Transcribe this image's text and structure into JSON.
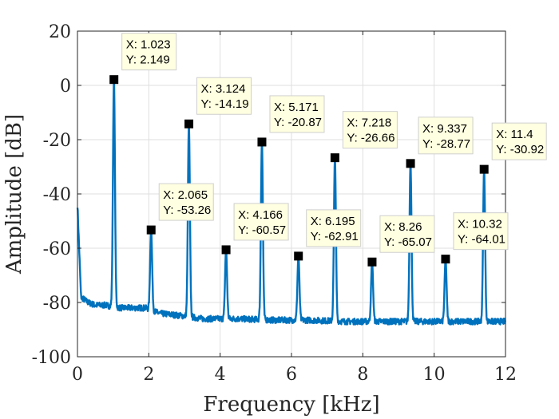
{
  "chart_data": {
    "type": "line",
    "title": "",
    "xlabel": "Frequency [kHz]",
    "ylabel": "Amplitude [dB]",
    "xlim": [
      0,
      12
    ],
    "ylim": [
      -100,
      20
    ],
    "xticks": [
      0,
      2,
      4,
      6,
      8,
      10,
      12
    ],
    "yticks": [
      20,
      0,
      -20,
      -40,
      -60,
      -80,
      -100
    ],
    "grid": true,
    "legend": "none",
    "colors": {
      "line": "#0072BD",
      "marker": "#000000",
      "tip_fill": "#FFFFE1",
      "axes": "#262626",
      "grid": "#DFDFDF"
    },
    "noise_floor": {
      "x": [
        0,
        0.1,
        0.3,
        0.5,
        0.8,
        1.2,
        1.5,
        1.9,
        2.3,
        3.0,
        3.5,
        4.5,
        5.5,
        6.5,
        7.5,
        8.5,
        9.5,
        10.5,
        11.5,
        12.0
      ],
      "y": [
        -44,
        -78,
        -80,
        -81,
        -81,
        -82,
        -82,
        -82,
        -84,
        -85,
        -86,
        -86,
        -86.5,
        -86.5,
        -87,
        -87,
        -87,
        -87,
        -87,
        -87
      ]
    },
    "harmonics": [
      {
        "x": 1.023,
        "y": 2.149
      },
      {
        "x": 2.065,
        "y": -53.26
      },
      {
        "x": 3.124,
        "y": -14.19
      },
      {
        "x": 4.166,
        "y": -60.57
      },
      {
        "x": 5.171,
        "y": -20.87
      },
      {
        "x": 6.195,
        "y": -62.91
      },
      {
        "x": 7.218,
        "y": -26.66
      },
      {
        "x": 8.26,
        "y": -65.07
      },
      {
        "x": 9.337,
        "y": -28.77
      },
      {
        "x": 10.32,
        "y": -64.01
      },
      {
        "x": 11.4,
        "y": -30.92
      }
    ],
    "datatips": [
      {
        "x_text": "X: 1.023",
        "y_text": "Y: 2.149"
      },
      {
        "x_text": "X: 2.065",
        "y_text": "Y: -53.26"
      },
      {
        "x_text": "X: 3.124",
        "y_text": "Y: -14.19"
      },
      {
        "x_text": "X: 4.166",
        "y_text": "Y: -60.57"
      },
      {
        "x_text": "X: 5.171",
        "y_text": "Y: -20.87"
      },
      {
        "x_text": "X: 6.195",
        "y_text": "Y: -62.91"
      },
      {
        "x_text": "X: 7.218",
        "y_text": "Y: -26.66"
      },
      {
        "x_text": "X: 8.26",
        "y_text": "Y: -65.07"
      },
      {
        "x_text": "X: 9.337",
        "y_text": "Y: -28.77"
      },
      {
        "x_text": "X: 10.32",
        "y_text": "Y: -64.01"
      },
      {
        "x_text": "X: 11.4",
        "y_text": "Y: -30.92"
      }
    ]
  }
}
